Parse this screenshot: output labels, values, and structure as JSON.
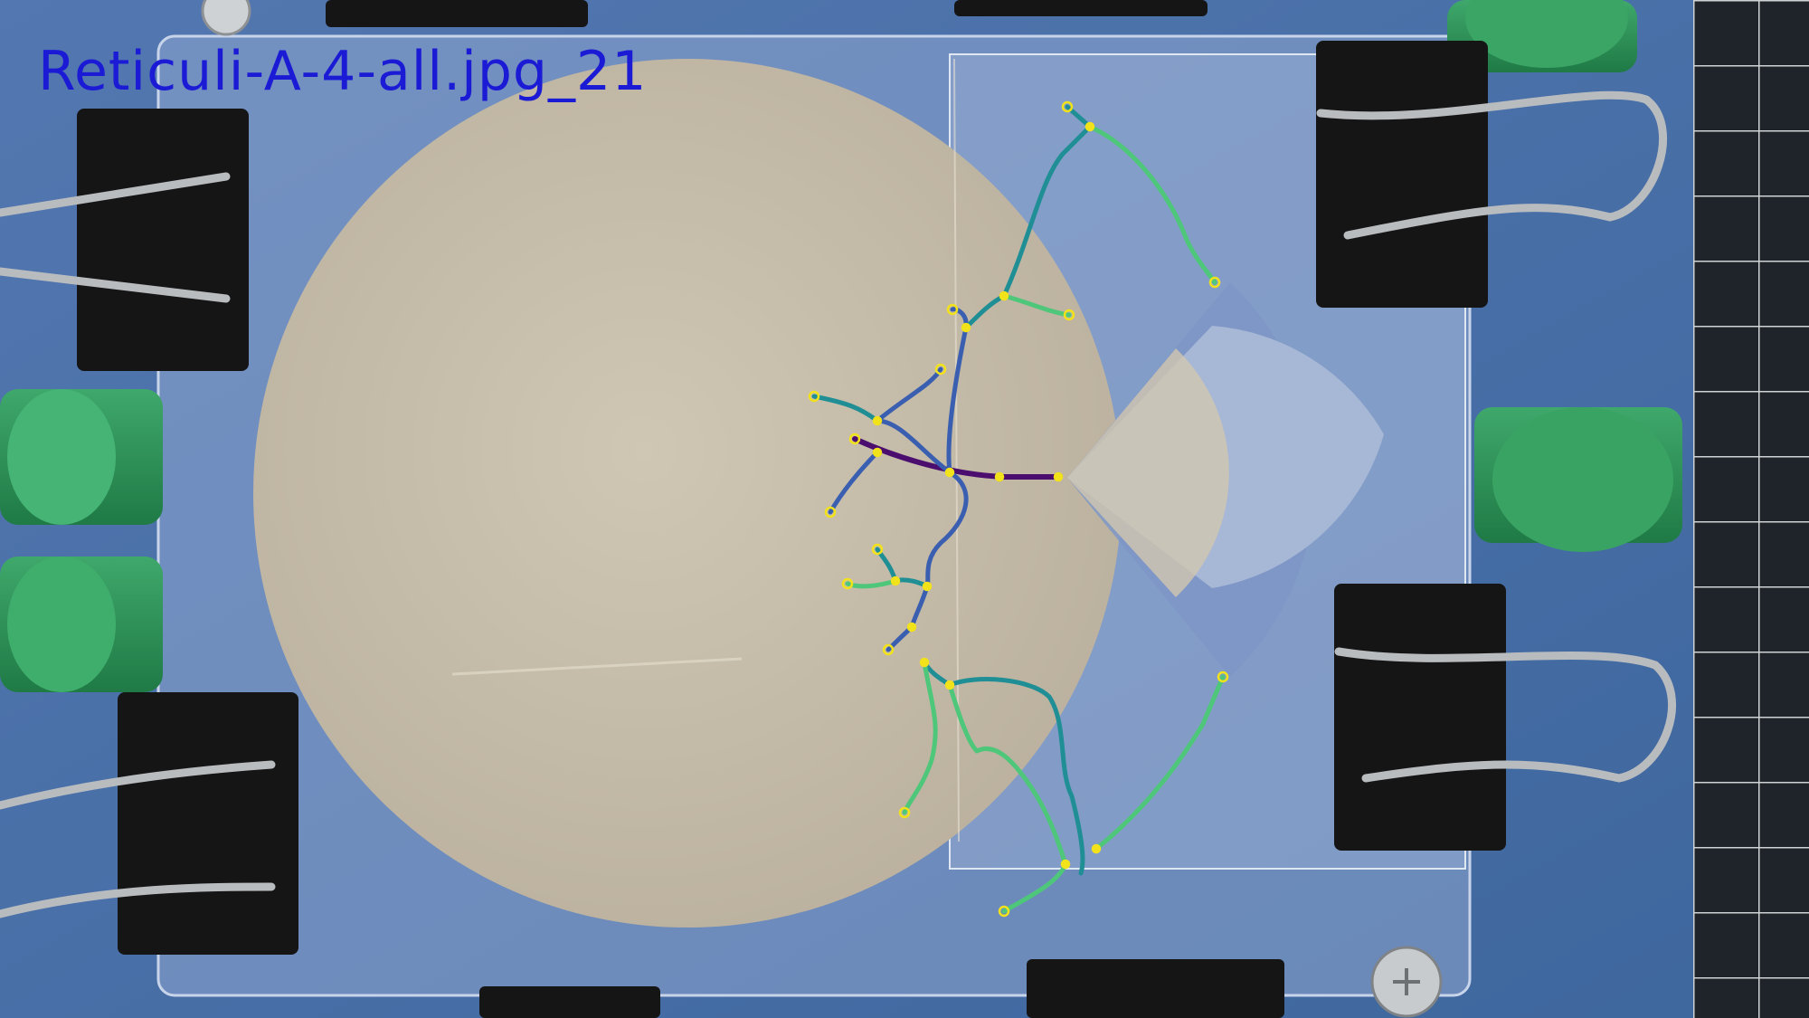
{
  "image": {
    "caption": "Reticuli-A-4-all.jpg_21",
    "caption_color": "#1b1bd6",
    "description_icons": [
      "binder-clip-icon",
      "green-cylinder-weight-icon",
      "sand-disk",
      "screw-icon",
      "cutting-mat-grid"
    ]
  },
  "overlay": {
    "network_name": "crack-network",
    "node_color": "#f2e21b",
    "edge_colors": {
      "root": "#4b0e6e",
      "level1": "#3a5fb0",
      "level2": "#1f8f95",
      "level3": "#4ec77a"
    }
  }
}
